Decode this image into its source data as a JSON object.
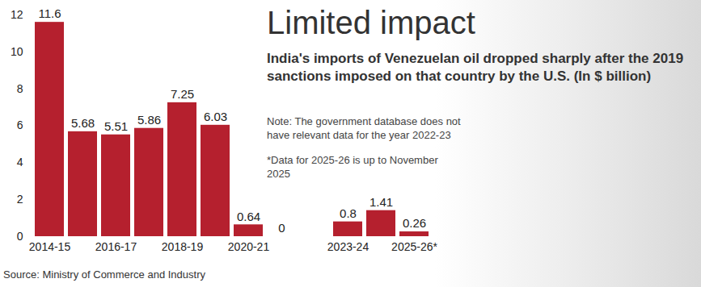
{
  "chart_data": {
    "type": "bar",
    "title": "Limited impact",
    "subtitle": "India's imports of Venezuelan oil dropped sharply after the 2019 sanctions imposed on that country by the U.S. (In $ billion)",
    "annotations": [
      "Note: The government database does not have relevant data for the year 2022-23",
      "*Data for 2025-26 is up to November 2025"
    ],
    "source": "Source: Ministry of Commerce and Industry",
    "categories": [
      "2014-15",
      null,
      "2016-17",
      null,
      "2018-19",
      null,
      "2020-21",
      null,
      null,
      "2023-24",
      null,
      "2025-26*"
    ],
    "values": [
      11.6,
      5.68,
      5.51,
      5.86,
      7.25,
      6.03,
      0.64,
      0,
      null,
      0.8,
      1.41,
      0.26
    ],
    "color": "#b5202e",
    "ylim": [
      0,
      12
    ],
    "yticks": [
      0,
      2,
      4,
      6,
      8,
      10,
      12
    ],
    "grid": false,
    "data_labels": true
  }
}
